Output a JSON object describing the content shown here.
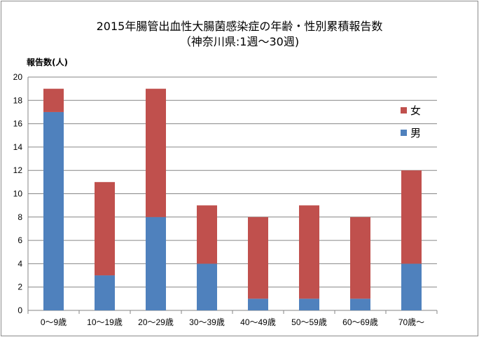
{
  "chart_data": {
    "type": "bar",
    "stacked": true,
    "title": "2015年腸管出血性大腸菌感染症の年齢・性別累積報告数",
    "subtitle": "（神奈川県:1週〜30週)",
    "ylabel": "報告数(人)",
    "xlabel": "",
    "ylim": [
      0,
      20
    ],
    "yticks": [
      0,
      2,
      4,
      6,
      8,
      10,
      12,
      14,
      16,
      18,
      20
    ],
    "grid": true,
    "legend_position": "right",
    "categories": [
      "0〜9歳",
      "10〜19歳",
      "20〜29歳",
      "30〜39歳",
      "40〜49歳",
      "50〜59歳",
      "60〜69歳",
      "70歳〜"
    ],
    "series": [
      {
        "name": "男",
        "color": "#4f81bd",
        "values": [
          17,
          3,
          8,
          4,
          1,
          1,
          1,
          4
        ]
      },
      {
        "name": "女",
        "color": "#c0504d",
        "values": [
          2,
          8,
          11,
          5,
          7,
          8,
          7,
          8
        ]
      }
    ],
    "legend_order": [
      "女",
      "男"
    ]
  }
}
